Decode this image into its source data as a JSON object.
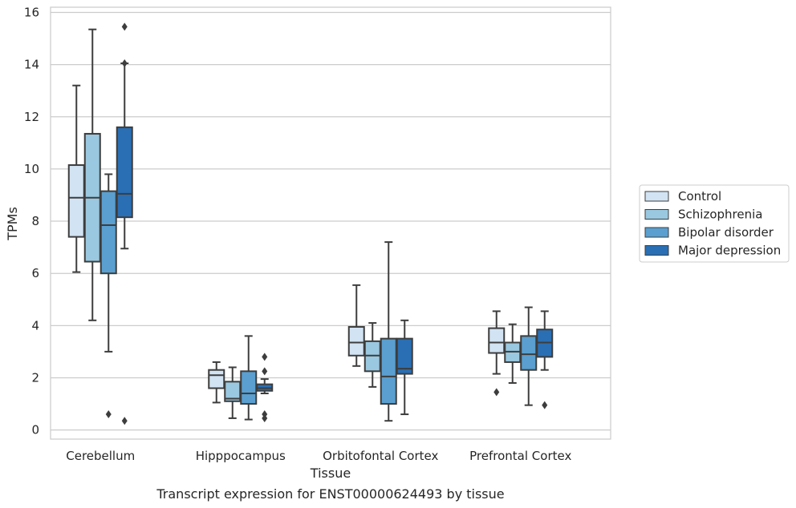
{
  "chart_data": {
    "type": "box",
    "caption": "Transcript expression for ENST00000624493 by tissue",
    "xlabel": "Tissue",
    "ylabel": "TPMs",
    "ylim": [
      -0.35,
      16.2
    ],
    "yticks": [
      0,
      2,
      4,
      6,
      8,
      10,
      12,
      14,
      16
    ],
    "grid": true,
    "legend_position": "right",
    "categories": [
      "Cerebellum",
      "Hipppocampus",
      "Orbitofontal Cortex",
      "Prefrontal Cortex"
    ],
    "series": [
      {
        "name": "Control",
        "color": "#d2e3f3",
        "boxes": [
          {
            "whisker_low": 6.05,
            "q1": 7.4,
            "median": 8.9,
            "q3": 10.15,
            "whisker_high": 13.2,
            "outliers": []
          },
          {
            "whisker_low": 1.05,
            "q1": 1.6,
            "median": 2.1,
            "q3": 2.3,
            "whisker_high": 2.6,
            "outliers": []
          },
          {
            "whisker_low": 2.45,
            "q1": 2.85,
            "median": 3.35,
            "q3": 3.95,
            "whisker_high": 5.55,
            "outliers": []
          },
          {
            "whisker_low": 2.15,
            "q1": 2.95,
            "median": 3.35,
            "q3": 3.9,
            "whisker_high": 4.55,
            "outliers": [
              1.45
            ]
          }
        ]
      },
      {
        "name": "Schizophrenia",
        "color": "#9ac8e0",
        "boxes": [
          {
            "whisker_low": 4.2,
            "q1": 6.45,
            "median": 8.9,
            "q3": 11.35,
            "whisker_high": 15.35,
            "outliers": []
          },
          {
            "whisker_low": 0.45,
            "q1": 1.1,
            "median": 1.2,
            "q3": 1.85,
            "whisker_high": 2.4,
            "outliers": []
          },
          {
            "whisker_low": 1.65,
            "q1": 2.25,
            "median": 2.85,
            "q3": 3.4,
            "whisker_high": 4.1,
            "outliers": []
          },
          {
            "whisker_low": 1.8,
            "q1": 2.6,
            "median": 3.0,
            "q3": 3.35,
            "whisker_high": 4.05,
            "outliers": []
          }
        ]
      },
      {
        "name": "Bipolar disorder",
        "color": "#5a9fcf",
        "boxes": [
          {
            "whisker_low": 3.0,
            "q1": 6.0,
            "median": 7.85,
            "q3": 9.15,
            "whisker_high": 9.8,
            "outliers": [
              0.6
            ]
          },
          {
            "whisker_low": 0.4,
            "q1": 1.0,
            "median": 1.4,
            "q3": 2.25,
            "whisker_high": 3.6,
            "outliers": []
          },
          {
            "whisker_low": 0.35,
            "q1": 1.0,
            "median": 2.05,
            "q3": 3.5,
            "whisker_high": 7.2,
            "outliers": []
          },
          {
            "whisker_low": 0.95,
            "q1": 2.3,
            "median": 2.9,
            "q3": 3.6,
            "whisker_high": 4.7,
            "outliers": []
          }
        ]
      },
      {
        "name": "Major depression",
        "color": "#2a6fb4",
        "boxes": [
          {
            "whisker_low": 6.95,
            "q1": 8.15,
            "median": 9.05,
            "q3": 11.6,
            "whisker_high": 14.05,
            "outliers": [
              15.45,
              14.05,
              0.35
            ]
          },
          {
            "whisker_low": 1.4,
            "q1": 1.5,
            "median": 1.6,
            "q3": 1.75,
            "whisker_high": 1.95,
            "outliers": [
              2.8,
              2.25,
              0.6,
              0.45
            ]
          },
          {
            "whisker_low": 0.6,
            "q1": 2.15,
            "median": 2.35,
            "q3": 3.5,
            "whisker_high": 4.2,
            "outliers": []
          },
          {
            "whisker_low": 2.3,
            "q1": 2.8,
            "median": 3.35,
            "q3": 3.85,
            "whisker_high": 4.55,
            "outliers": [
              0.95
            ]
          }
        ]
      }
    ]
  }
}
